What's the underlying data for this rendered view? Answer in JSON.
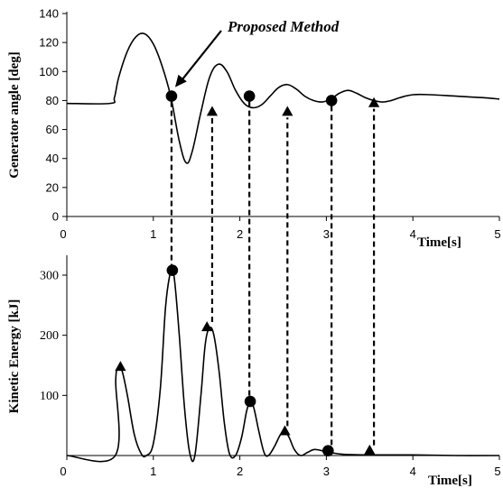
{
  "chart_data": [
    {
      "type": "line",
      "ylabel": "Generator angle [deg]",
      "xlabel": "Time[s]",
      "xlim": [
        0,
        5
      ],
      "ylim": [
        0,
        140
      ],
      "xticks": [
        "0",
        "1",
        "2",
        "3",
        "4",
        "5"
      ],
      "yticks": [
        "0",
        "20",
        "40",
        "60",
        "80",
        "100",
        "120",
        "140"
      ],
      "annotation": "Proposed Method",
      "curve": {
        "x": [
          0,
          0.5,
          0.55,
          0.6,
          0.7,
          0.8,
          0.9,
          1.0,
          1.1,
          1.2,
          1.3,
          1.38,
          1.45,
          1.55,
          1.65,
          1.75,
          1.85,
          1.95,
          2.05,
          2.15,
          2.25,
          2.35,
          2.45,
          2.55,
          2.65,
          2.75,
          2.85,
          2.95,
          3.05,
          3.15,
          3.25,
          3.35,
          3.45,
          3.55,
          3.65,
          3.75,
          3.85,
          4.0,
          4.2,
          4.5,
          4.8,
          5.0
        ],
        "y": [
          78,
          78,
          82,
          96,
          114,
          124,
          126,
          119,
          104,
          83,
          52,
          37,
          45,
          72,
          96,
          105,
          100,
          87,
          78,
          75,
          77,
          83,
          89,
          91,
          88,
          83,
          80,
          79,
          81,
          85,
          87,
          85,
          82,
          80,
          79,
          80,
          82,
          84,
          84,
          83,
          82,
          81
        ]
      },
      "circle_markers": {
        "x": [
          1.21,
          2.11,
          3.06
        ],
        "y": [
          83,
          83,
          80
        ]
      },
      "triangle_markers": {
        "x": [
          1.68,
          2.55,
          3.55
        ],
        "y": [
          72,
          72,
          78
        ]
      }
    },
    {
      "type": "line",
      "ylabel": "Kinetic Energy [kJ]",
      "xlabel": "Time[s]",
      "xlim": [
        0,
        5
      ],
      "ylim": [
        0,
        330
      ],
      "xticks": [
        "0",
        "1",
        "2",
        "3",
        "4",
        "5"
      ],
      "yticks": [
        "100",
        "200",
        "300"
      ],
      "curve": {
        "x": [
          0,
          0.56,
          0.565,
          0.6,
          0.64,
          0.7,
          0.78,
          0.86,
          0.92,
          1.0,
          1.08,
          1.14,
          1.19,
          1.22,
          1.25,
          1.3,
          1.36,
          1.42,
          1.48,
          1.55,
          1.6,
          1.65,
          1.7,
          1.76,
          1.82,
          1.88,
          1.95,
          2.02,
          2.08,
          2.12,
          2.16,
          2.22,
          2.28,
          2.33,
          2.4,
          2.47,
          2.52,
          2.57,
          2.63,
          2.7,
          2.78,
          2.86,
          2.95,
          3.05,
          3.2,
          3.5,
          4.0,
          4.5,
          5.0
        ],
        "y": [
          0,
          0,
          125,
          145,
          140,
          100,
          35,
          3,
          0,
          20,
          110,
          245,
          300,
          308,
          285,
          200,
          80,
          5,
          0,
          100,
          185,
          212,
          200,
          140,
          55,
          3,
          0,
          30,
          75,
          88,
          80,
          40,
          5,
          0,
          15,
          35,
          40,
          30,
          10,
          0,
          5,
          10,
          8,
          5,
          2,
          1,
          1,
          0,
          0
        ]
      },
      "circle_markers": {
        "x": [
          1.22,
          2.12,
          3.02
        ],
        "y": [
          308,
          90,
          8
        ]
      },
      "triangle_markers": {
        "x": [
          0.62,
          1.62,
          2.52,
          3.5
        ],
        "y": [
          147,
          213,
          40,
          8
        ]
      }
    }
  ]
}
